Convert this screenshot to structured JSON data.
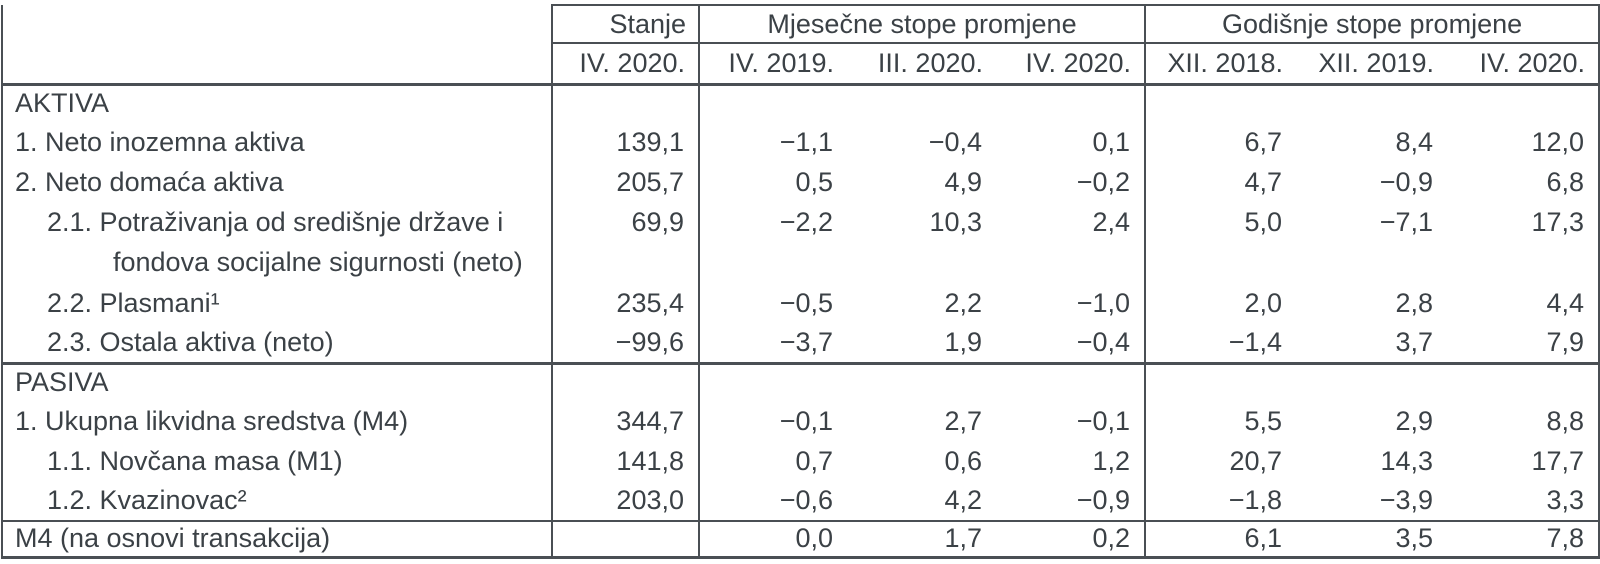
{
  "colors": {
    "text": "#3b4146",
    "border": "#4a4f54",
    "background": "#ffffff"
  },
  "table": {
    "header": {
      "stub": "",
      "stanje": {
        "group": "Stanje",
        "col": "IV. 2020."
      },
      "monthly": {
        "group": "Mjesečne stope promjene",
        "cols": [
          "IV. 2019.",
          "III. 2020.",
          "IV. 2020."
        ]
      },
      "annual": {
        "group": "Godišnje stope promjene",
        "cols": [
          "XII. 2018.",
          "XII. 2019.",
          "IV. 2020."
        ]
      }
    },
    "rows": [
      {
        "type": "section",
        "label": "AKTIVA"
      },
      {
        "type": "item",
        "indent": 0,
        "label": "1. Neto inozemna aktiva",
        "values": [
          "139,1",
          "−1,1",
          "−0,4",
          "0,1",
          "6,7",
          "8,4",
          "12,0"
        ]
      },
      {
        "type": "item",
        "indent": 0,
        "label": "2. Neto domaća aktiva",
        "values": [
          "205,7",
          "0,5",
          "4,9",
          "−0,2",
          "4,7",
          "−0,9",
          "6,8"
        ]
      },
      {
        "type": "item",
        "indent": 1,
        "label": "2.1. Potraživanja od središnje države i",
        "label2": "fondova socijalne sigurnosti (neto)",
        "values": [
          "69,9",
          "−2,2",
          "10,3",
          "2,4",
          "5,0",
          "−7,1",
          "17,3"
        ]
      },
      {
        "type": "item",
        "indent": 1,
        "label": "2.2. Plasmani¹",
        "values": [
          "235,4",
          "−0,5",
          "2,2",
          "−1,0",
          "2,0",
          "2,8",
          "4,4"
        ]
      },
      {
        "type": "item",
        "indent": 1,
        "label": "2.3. Ostala aktiva (neto)",
        "values": [
          "−99,6",
          "−3,7",
          "1,9",
          "−0,4",
          "−1,4",
          "3,7",
          "7,9"
        ]
      },
      {
        "type": "section",
        "label": "PASIVA"
      },
      {
        "type": "item",
        "indent": 0,
        "label": "1. Ukupna likvidna sredstva (M4)",
        "values": [
          "344,7",
          "−0,1",
          "2,7",
          "−0,1",
          "5,5",
          "2,9",
          "8,8"
        ]
      },
      {
        "type": "item",
        "indent": 1,
        "label": "1.1. Novčana masa (M1)",
        "values": [
          "141,8",
          "0,7",
          "0,6",
          "1,2",
          "20,7",
          "14,3",
          "17,7"
        ]
      },
      {
        "type": "item",
        "indent": 1,
        "label": "1.2. Kvazinovac²",
        "values": [
          "203,0",
          "−0,6",
          "4,2",
          "−0,9",
          "−1,8",
          "−3,9",
          "3,3"
        ]
      },
      {
        "type": "total",
        "label": "M4 (na osnovi transakcija)",
        "values": [
          "",
          "0,0",
          "1,7",
          "0,2",
          "6,1",
          "3,5",
          "7,8"
        ]
      }
    ]
  }
}
